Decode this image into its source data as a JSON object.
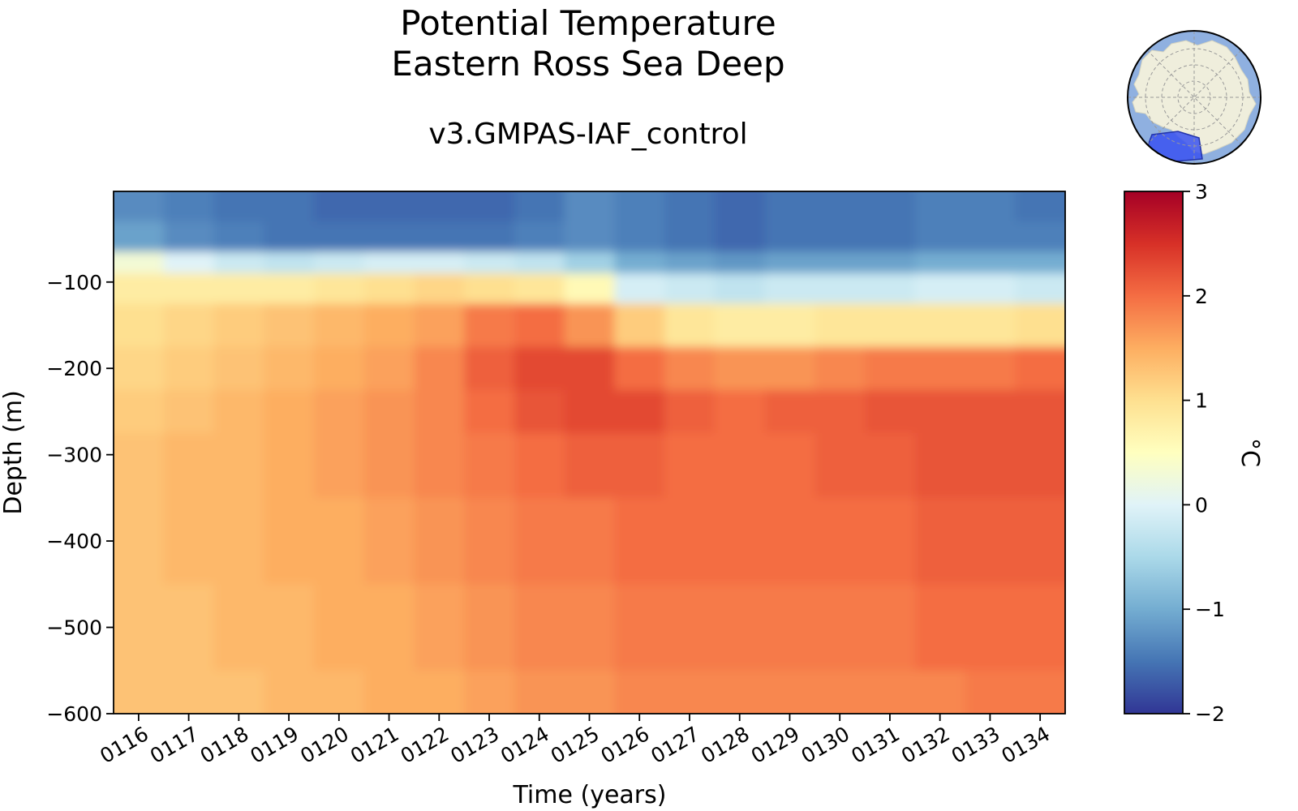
{
  "title": [
    "Potential Temperature",
    "Eastern Ross Sea Deep"
  ],
  "subtitle": "v3.GMPAS-IAF_control",
  "inset_map": {
    "description_icon": "antarctica-region-map-icon",
    "ocean_color": "#8fb0e0",
    "land_color": "#efeedc",
    "region_color": "#3a52f0"
  },
  "chart_data": {
    "type": "heatmap",
    "title": "Potential Temperature\nEastern Ross Sea Deep",
    "subtitle": "v3.GMPAS-IAF_control",
    "xlabel": "Time (years)",
    "ylabel": "Depth (m)",
    "x_tick_labels": [
      "0116",
      "0117",
      "0118",
      "0119",
      "0120",
      "0121",
      "0122",
      "0123",
      "0124",
      "0125",
      "0126",
      "0127",
      "0128",
      "0129",
      "0130",
      "0131",
      "0132",
      "0133",
      "0134"
    ],
    "y_ticks": [
      -100,
      -200,
      -300,
      -400,
      -500,
      -600
    ],
    "y_tick_labels": [
      "−100",
      "−200",
      "−300",
      "−400",
      "−500",
      "−600"
    ],
    "xlim": [
      115.5,
      134.5
    ],
    "ylim": [
      -600,
      5
    ],
    "colorbar": {
      "label": "°C",
      "vmin": -2,
      "vmax": 3,
      "ticks": [
        3,
        2,
        1,
        0,
        -1,
        -2
      ],
      "tick_labels": [
        "3",
        "2",
        "1",
        "0",
        "−1",
        "−2"
      ],
      "colormap": "RdYlBu_r"
    },
    "x_years": [
      116,
      117,
      118,
      119,
      120,
      121,
      122,
      123,
      124,
      125,
      126,
      127,
      128,
      129,
      130,
      131,
      132,
      133,
      134
    ],
    "depths": [
      -10,
      -50,
      -80,
      -100,
      -150,
      -200,
      -250,
      -300,
      -400,
      -500,
      -600
    ],
    "values": [
      [
        -1.3,
        -1.4,
        -1.5,
        -1.5,
        -1.6,
        -1.6,
        -1.6,
        -1.6,
        -1.5,
        -1.3,
        -1.4,
        -1.5,
        -1.6,
        -1.5,
        -1.5,
        -1.5,
        -1.4,
        -1.4,
        -1.5
      ],
      [
        -1.1,
        -1.3,
        -1.4,
        -1.5,
        -1.5,
        -1.5,
        -1.5,
        -1.5,
        -1.4,
        -1.3,
        -1.4,
        -1.5,
        -1.6,
        -1.5,
        -1.5,
        -1.5,
        -1.4,
        -1.4,
        -1.4
      ],
      [
        0.3,
        0.0,
        -0.2,
        -0.3,
        -0.2,
        -0.1,
        -0.1,
        -0.2,
        -0.3,
        -0.6,
        -1.0,
        -1.1,
        -1.2,
        -1.1,
        -1.1,
        -1.1,
        -1.0,
        -1.0,
        -1.0
      ],
      [
        0.8,
        0.8,
        0.8,
        0.8,
        0.9,
        1.0,
        1.1,
        1.0,
        0.9,
        0.6,
        -0.1,
        -0.2,
        -0.3,
        -0.2,
        -0.2,
        -0.2,
        -0.1,
        -0.1,
        -0.2
      ],
      [
        1.0,
        1.1,
        1.2,
        1.3,
        1.4,
        1.5,
        1.6,
        1.9,
        2.0,
        1.7,
        1.2,
        0.9,
        0.8,
        0.8,
        0.9,
        0.9,
        0.9,
        0.9,
        1.0
      ],
      [
        1.1,
        1.2,
        1.3,
        1.4,
        1.5,
        1.6,
        1.8,
        2.1,
        2.3,
        2.3,
        2.0,
        1.8,
        1.7,
        1.7,
        1.8,
        1.9,
        1.9,
        1.9,
        2.0
      ],
      [
        1.2,
        1.3,
        1.4,
        1.5,
        1.6,
        1.7,
        1.8,
        2.0,
        2.2,
        2.3,
        2.3,
        2.1,
        2.0,
        2.1,
        2.1,
        2.2,
        2.2,
        2.2,
        2.2
      ],
      [
        1.3,
        1.4,
        1.4,
        1.5,
        1.6,
        1.7,
        1.8,
        1.9,
        2.0,
        2.1,
        2.1,
        2.0,
        2.0,
        2.0,
        2.1,
        2.1,
        2.2,
        2.2,
        2.2
      ],
      [
        1.3,
        1.4,
        1.4,
        1.5,
        1.5,
        1.6,
        1.7,
        1.8,
        1.9,
        1.9,
        2.0,
        2.0,
        2.0,
        2.0,
        2.0,
        2.0,
        2.1,
        2.1,
        2.1
      ],
      [
        1.3,
        1.3,
        1.4,
        1.4,
        1.5,
        1.5,
        1.6,
        1.7,
        1.8,
        1.8,
        1.9,
        1.9,
        1.9,
        1.9,
        1.9,
        1.9,
        2.0,
        2.0,
        2.0
      ],
      [
        1.3,
        1.3,
        1.3,
        1.4,
        1.4,
        1.5,
        1.5,
        1.6,
        1.7,
        1.7,
        1.8,
        1.8,
        1.8,
        1.8,
        1.8,
        1.8,
        1.8,
        1.9,
        1.9
      ]
    ]
  }
}
